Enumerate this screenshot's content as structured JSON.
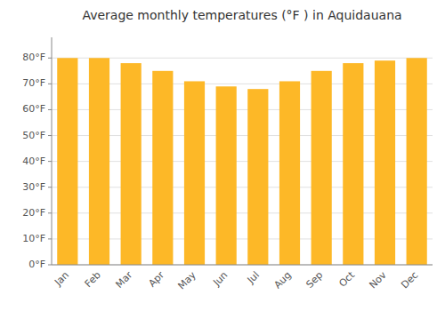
{
  "chart_data": {
    "type": "bar",
    "title": "Average monthly temperatures (°F ) in Aquidauana",
    "categories": [
      "Jan",
      "Feb",
      "Mar",
      "Apr",
      "May",
      "Jun",
      "Jul",
      "Aug",
      "Sep",
      "Oct",
      "Nov",
      "Dec"
    ],
    "values": [
      80,
      80,
      78,
      75,
      71,
      69,
      68,
      71,
      75,
      78,
      79,
      80
    ],
    "color": "#FDB827",
    "ylim": [
      0,
      88
    ],
    "yticks": [
      {
        "value": 0,
        "label": "0°F"
      },
      {
        "value": 10,
        "label": "10°F"
      },
      {
        "value": 20,
        "label": "20°F"
      },
      {
        "value": 30,
        "label": "30°F"
      },
      {
        "value": 40,
        "label": "40°F"
      },
      {
        "value": 50,
        "label": "50°F"
      },
      {
        "value": 60,
        "label": "60°F"
      },
      {
        "value": 70,
        "label": "70°F"
      },
      {
        "value": 80,
        "label": "80°F"
      }
    ],
    "grid": true
  }
}
